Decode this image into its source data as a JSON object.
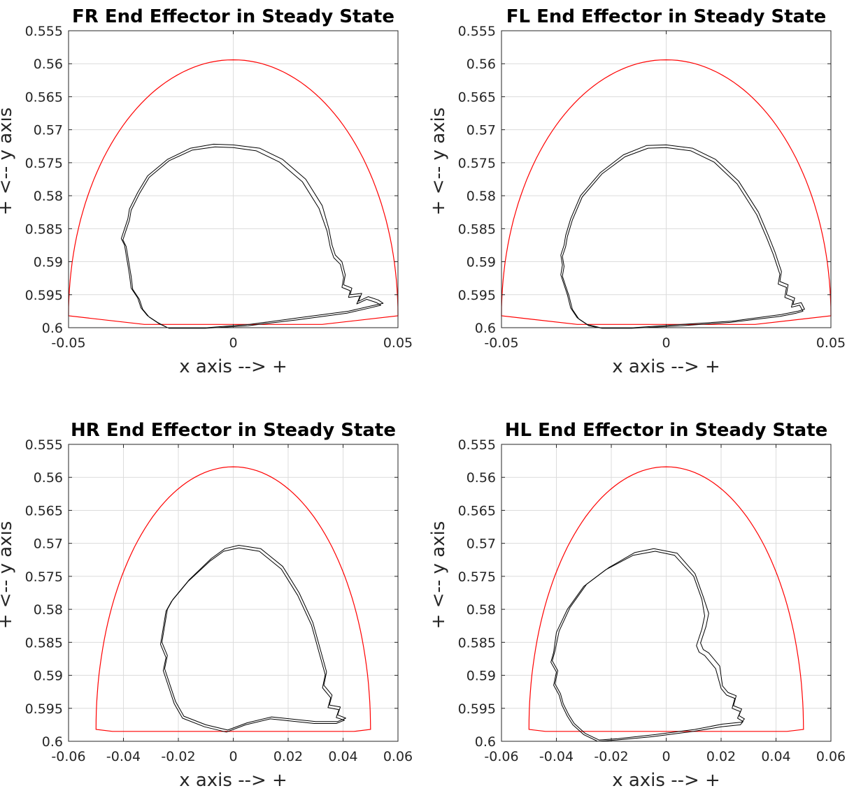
{
  "colors": {
    "boundary": "#ff0000",
    "trajectory": "#000000",
    "grid": "#dcdcdc",
    "axis": "#262626"
  },
  "chart_data": [
    {
      "type": "line",
      "title": "FR End Effector in Steady State",
      "xlabel": "x axis --> +",
      "ylabel": "+ <-- y axis",
      "xlim": [
        -0.05,
        0.05
      ],
      "ylim": [
        0.555,
        0.6
      ],
      "y_reversed": true,
      "grid": true,
      "xticks": [
        -0.05,
        0,
        0.05
      ],
      "xtick_labels": [
        "-0.05",
        "0",
        "0.05"
      ],
      "yticks": [
        0.555,
        0.56,
        0.565,
        0.57,
        0.575,
        0.58,
        0.585,
        0.59,
        0.595,
        0.6
      ],
      "ytick_labels": [
        "0.555",
        "0.56",
        "0.565",
        "0.57",
        "0.575",
        "0.58",
        "0.585",
        "0.59",
        "0.595",
        "0.6"
      ],
      "boundary": {
        "x_half_width": 0.05,
        "y_top": 0.5594,
        "y_base": 0.5982,
        "x_flat": 0.027,
        "y_flat": 0.5995
      },
      "series": [
        {
          "color": "#000000",
          "x": [
            0,
            0.008,
            0.015,
            0.022,
            0.027,
            0.029,
            0.03,
            0.031,
            0.033,
            0.034,
            0.0335,
            0.036,
            0.0355,
            0.039,
            0.038,
            0.041,
            0.044,
            0.0455,
            0.042,
            0.035,
            0.02,
            0.005,
            -0.008,
            -0.02,
            -0.023,
            -0.026,
            -0.028,
            -0.029,
            -0.031,
            -0.0315,
            -0.032,
            -0.0325,
            -0.033,
            -0.034,
            -0.033,
            -0.032,
            -0.0315,
            -0.029,
            -0.026,
            -0.02,
            -0.013,
            -0.006,
            0
          ],
          "y": [
            0.5723,
            0.5728,
            0.5745,
            0.5775,
            0.5815,
            0.585,
            0.5875,
            0.589,
            0.59,
            0.592,
            0.5935,
            0.594,
            0.595,
            0.5948,
            0.596,
            0.5953,
            0.5958,
            0.5963,
            0.5967,
            0.5975,
            0.5985,
            0.5995,
            0.6,
            0.6,
            0.5992,
            0.5982,
            0.597,
            0.5955,
            0.594,
            0.592,
            0.5905,
            0.589,
            0.5875,
            0.5865,
            0.585,
            0.5835,
            0.582,
            0.5795,
            0.577,
            0.5745,
            0.5728,
            0.5722,
            0.5723
          ]
        },
        {
          "color": "#000000",
          "x": [
            0,
            0.007,
            0.014,
            0.021,
            0.026,
            0.0285,
            0.0295,
            0.0305,
            0.0325,
            0.0335,
            0.033,
            0.0355,
            0.035,
            0.0385,
            0.0375,
            0.0405,
            0.0435,
            0.0448,
            0.0415,
            0.0345,
            0.0195,
            0.0045,
            -0.0085,
            -0.0195,
            -0.0225,
            -0.0255,
            -0.0275,
            -0.0285,
            -0.0305,
            -0.031,
            -0.0315,
            -0.032,
            -0.0325,
            -0.0335,
            -0.0325,
            -0.0315,
            -0.031,
            -0.0285,
            -0.0255,
            -0.0195,
            -0.0125,
            -0.0055,
            0
          ],
          "y": [
            0.5727,
            0.5732,
            0.5749,
            0.5779,
            0.5819,
            0.5854,
            0.5879,
            0.5894,
            0.5904,
            0.5924,
            0.5939,
            0.5944,
            0.5954,
            0.5952,
            0.5964,
            0.5957,
            0.5962,
            0.5966,
            0.597,
            0.5978,
            0.5988,
            0.5997,
            0.6001,
            0.6001,
            0.5994,
            0.5984,
            0.5972,
            0.5957,
            0.5942,
            0.5922,
            0.5907,
            0.5892,
            0.5877,
            0.5867,
            0.5852,
            0.5837,
            0.5822,
            0.5797,
            0.5772,
            0.5747,
            0.5731,
            0.5726,
            0.5727
          ]
        }
      ]
    },
    {
      "type": "line",
      "title": "FL End Effector in Steady State",
      "xlabel": "x axis --> +",
      "ylabel": "+ <-- y axis",
      "xlim": [
        -0.05,
        0.05
      ],
      "ylim": [
        0.555,
        0.6
      ],
      "y_reversed": true,
      "grid": true,
      "xticks": [
        -0.05,
        0,
        0.05
      ],
      "xtick_labels": [
        "-0.05",
        "0",
        "0.05"
      ],
      "yticks": [
        0.555,
        0.56,
        0.565,
        0.57,
        0.575,
        0.58,
        0.585,
        0.59,
        0.595,
        0.6
      ],
      "ytick_labels": [
        "0.555",
        "0.56",
        "0.565",
        "0.57",
        "0.575",
        "0.58",
        "0.585",
        "0.59",
        "0.595",
        "0.6"
      ],
      "boundary": {
        "x_half_width": 0.05,
        "y_top": 0.5594,
        "y_base": 0.5982,
        "x_flat": 0.027,
        "y_flat": 0.5995
      },
      "series": [
        {
          "color": "#000000",
          "x": [
            0,
            0.008,
            0.015,
            0.022,
            0.028,
            0.031,
            0.033,
            0.034,
            0.035,
            0.0345,
            0.037,
            0.0365,
            0.039,
            0.0385,
            0.041,
            0.042,
            0.04,
            0.035,
            0.02,
            0.005,
            -0.01,
            -0.02,
            -0.024,
            -0.027,
            -0.029,
            -0.03,
            -0.031,
            -0.032,
            -0.0315,
            -0.032,
            -0.031,
            -0.0305,
            -0.029,
            -0.026,
            -0.02,
            -0.013,
            -0.006,
            0
          ],
          "y": [
            0.5723,
            0.5728,
            0.5745,
            0.5778,
            0.5825,
            0.586,
            0.5885,
            0.59,
            0.5915,
            0.593,
            0.5935,
            0.595,
            0.5955,
            0.5965,
            0.5962,
            0.5972,
            0.5975,
            0.598,
            0.599,
            0.5995,
            0.6,
            0.6,
            0.5995,
            0.5985,
            0.597,
            0.595,
            0.5935,
            0.592,
            0.5905,
            0.589,
            0.5875,
            0.586,
            0.5835,
            0.58,
            0.5765,
            0.5738,
            0.5724,
            0.5723
          ]
        },
        {
          "color": "#000000",
          "x": [
            0,
            0.0075,
            0.0145,
            0.0215,
            0.0275,
            0.0305,
            0.0325,
            0.0335,
            0.0345,
            0.034,
            0.0365,
            0.036,
            0.0385,
            0.038,
            0.0405,
            0.0415,
            0.0395,
            0.0345,
            0.0195,
            0.0045,
            -0.0105,
            -0.0195,
            -0.0235,
            -0.0265,
            -0.0285,
            -0.0295,
            -0.0305,
            -0.0315,
            -0.031,
            -0.0315,
            -0.0305,
            -0.03,
            -0.0285,
            -0.0255,
            -0.0195,
            -0.0125,
            -0.0055,
            0
          ],
          "y": [
            0.5727,
            0.5732,
            0.5749,
            0.5782,
            0.5829,
            0.5864,
            0.5889,
            0.5904,
            0.5919,
            0.5934,
            0.5939,
            0.5954,
            0.5959,
            0.5969,
            0.5966,
            0.5975,
            0.5978,
            0.5983,
            0.5992,
            0.5997,
            0.6001,
            0.6001,
            0.5997,
            0.5987,
            0.5972,
            0.5952,
            0.5937,
            0.5922,
            0.5907,
            0.5892,
            0.5877,
            0.5862,
            0.5837,
            0.5802,
            0.5767,
            0.5741,
            0.5728,
            0.5727
          ]
        }
      ]
    },
    {
      "type": "line",
      "title": "HR End Effector in Steady State",
      "xlabel": "x axis --> +",
      "ylabel": "+ <-- y axis",
      "xlim": [
        -0.06,
        0.06
      ],
      "ylim": [
        0.555,
        0.6
      ],
      "y_reversed": true,
      "grid": true,
      "xticks": [
        -0.06,
        -0.04,
        -0.02,
        0,
        0.02,
        0.04,
        0.06
      ],
      "xtick_labels": [
        "-0.06",
        "-0.04",
        "-0.02",
        "0",
        "0.02",
        "0.04",
        "0.06"
      ],
      "yticks": [
        0.555,
        0.56,
        0.565,
        0.57,
        0.575,
        0.58,
        0.585,
        0.59,
        0.595,
        0.6
      ],
      "ytick_labels": [
        "0.555",
        "0.56",
        "0.565",
        "0.57",
        "0.575",
        "0.58",
        "0.585",
        "0.59",
        "0.595",
        "0.6"
      ],
      "boundary": {
        "x_half_width": 0.05,
        "y_top": 0.5584,
        "y_base": 0.5982,
        "x_flat": 0.044,
        "y_flat": 0.5985
      },
      "series": [
        {
          "color": "#000000",
          "x": [
            0.002,
            0.01,
            0.018,
            0.024,
            0.029,
            0.032,
            0.034,
            0.033,
            0.036,
            0.035,
            0.039,
            0.038,
            0.041,
            0.038,
            0.03,
            0.014,
            0.005,
            -0.002,
            -0.01,
            -0.018,
            -0.021,
            -0.023,
            -0.025,
            -0.024,
            -0.026,
            -0.025,
            -0.024,
            -0.022,
            -0.016,
            -0.008,
            -0.003,
            0.002
          ],
          "y": [
            0.5703,
            0.5708,
            0.5735,
            0.5775,
            0.582,
            0.5865,
            0.5895,
            0.5915,
            0.593,
            0.5945,
            0.5948,
            0.596,
            0.5965,
            0.597,
            0.597,
            0.5963,
            0.5972,
            0.5983,
            0.5975,
            0.5962,
            0.594,
            0.5915,
            0.589,
            0.587,
            0.585,
            0.5825,
            0.58,
            0.5785,
            0.5755,
            0.5723,
            0.5708,
            0.5703
          ]
        },
        {
          "color": "#000000",
          "x": [
            0.002,
            0.0095,
            0.0175,
            0.0235,
            0.0285,
            0.0315,
            0.0335,
            0.0325,
            0.0355,
            0.0345,
            0.0385,
            0.0375,
            0.0405,
            0.0375,
            0.0295,
            0.0135,
            0.0045,
            -0.0025,
            -0.0105,
            -0.0185,
            -0.0215,
            -0.0235,
            -0.0255,
            -0.0245,
            -0.0265,
            -0.0255,
            -0.0245,
            -0.0225,
            -0.0165,
            -0.0085,
            -0.0035,
            0.002
          ],
          "y": [
            0.5707,
            0.5712,
            0.5739,
            0.5779,
            0.5824,
            0.5869,
            0.5899,
            0.5919,
            0.5934,
            0.5949,
            0.5952,
            0.5964,
            0.5968,
            0.5973,
            0.5973,
            0.5966,
            0.5975,
            0.5986,
            0.5978,
            0.5965,
            0.5943,
            0.5918,
            0.5893,
            0.5873,
            0.5853,
            0.5828,
            0.5803,
            0.5788,
            0.5758,
            0.5727,
            0.5712,
            0.5707
          ]
        }
      ]
    },
    {
      "type": "line",
      "title": "HL End Effector in Steady State",
      "xlabel": "x axis --> +",
      "ylabel": "+ <-- y axis",
      "xlim": [
        -0.06,
        0.06
      ],
      "ylim": [
        0.555,
        0.6
      ],
      "y_reversed": true,
      "grid": true,
      "xticks": [
        -0.06,
        -0.04,
        -0.02,
        0,
        0.02,
        0.04,
        0.06
      ],
      "xtick_labels": [
        "-0.06",
        "-0.04",
        "-0.02",
        "0",
        "0.02",
        "0.04",
        "0.06"
      ],
      "yticks": [
        0.555,
        0.56,
        0.565,
        0.57,
        0.575,
        0.58,
        0.585,
        0.59,
        0.595,
        0.6
      ],
      "ytick_labels": [
        "0.555",
        "0.56",
        "0.565",
        "0.57",
        "0.575",
        "0.58",
        "0.585",
        "0.59",
        "0.595",
        "0.6"
      ],
      "boundary": {
        "x_half_width": 0.05,
        "y_top": 0.5584,
        "y_base": 0.5982,
        "x_flat": 0.044,
        "y_flat": 0.5985
      },
      "series": [
        {
          "color": "#000000",
          "x": [
            -0.004,
            0.003,
            0.01,
            0.013,
            0.014,
            0.013,
            0.011,
            0.012,
            0.014,
            0.018,
            0.02,
            0.022,
            0.025,
            0.024,
            0.027,
            0.026,
            0.028,
            0.027,
            0.02,
            0.01,
            -0.005,
            -0.018,
            -0.025,
            -0.03,
            -0.034,
            -0.036,
            -0.038,
            -0.039,
            -0.041,
            -0.04,
            -0.042,
            -0.041,
            -0.04,
            -0.036,
            -0.03,
            -0.022,
            -0.012,
            -0.004
          ],
          "y": [
            0.5712,
            0.5718,
            0.575,
            0.5785,
            0.581,
            0.583,
            0.5855,
            0.5865,
            0.587,
            0.589,
            0.592,
            0.593,
            0.5935,
            0.595,
            0.5955,
            0.5965,
            0.597,
            0.5975,
            0.5978,
            0.5985,
            0.5993,
            0.5998,
            0.6,
            0.599,
            0.5975,
            0.5962,
            0.5945,
            0.593,
            0.5915,
            0.5895,
            0.588,
            0.5865,
            0.5835,
            0.58,
            0.5765,
            0.574,
            0.5718,
            0.5712
          ]
        },
        {
          "color": "#000000",
          "x": [
            -0.0045,
            0.004,
            0.0105,
            0.0135,
            0.0155,
            0.0145,
            0.0125,
            0.0135,
            0.0155,
            0.0195,
            0.0205,
            0.0225,
            0.0255,
            0.0245,
            0.0275,
            0.0265,
            0.0285,
            0.0275,
            0.0205,
            0.0105,
            -0.0045,
            -0.0175,
            -0.0245,
            -0.0295,
            -0.0335,
            -0.0355,
            -0.0375,
            -0.0385,
            -0.0405,
            -0.0395,
            -0.0415,
            -0.0405,
            -0.039,
            -0.035,
            -0.029,
            -0.021,
            -0.0115,
            -0.0045
          ],
          "y": [
            0.5708,
            0.5715,
            0.5746,
            0.5781,
            0.5806,
            0.5826,
            0.5851,
            0.5861,
            0.5866,
            0.5886,
            0.5916,
            0.5926,
            0.5931,
            0.5946,
            0.5951,
            0.5961,
            0.5966,
            0.5971,
            0.5974,
            0.5982,
            0.599,
            0.5996,
            0.5998,
            0.5988,
            0.5973,
            0.596,
            0.5943,
            0.5928,
            0.5913,
            0.5893,
            0.5878,
            0.5863,
            0.5833,
            0.5797,
            0.5762,
            0.5737,
            0.5714,
            0.5708
          ]
        }
      ]
    }
  ]
}
